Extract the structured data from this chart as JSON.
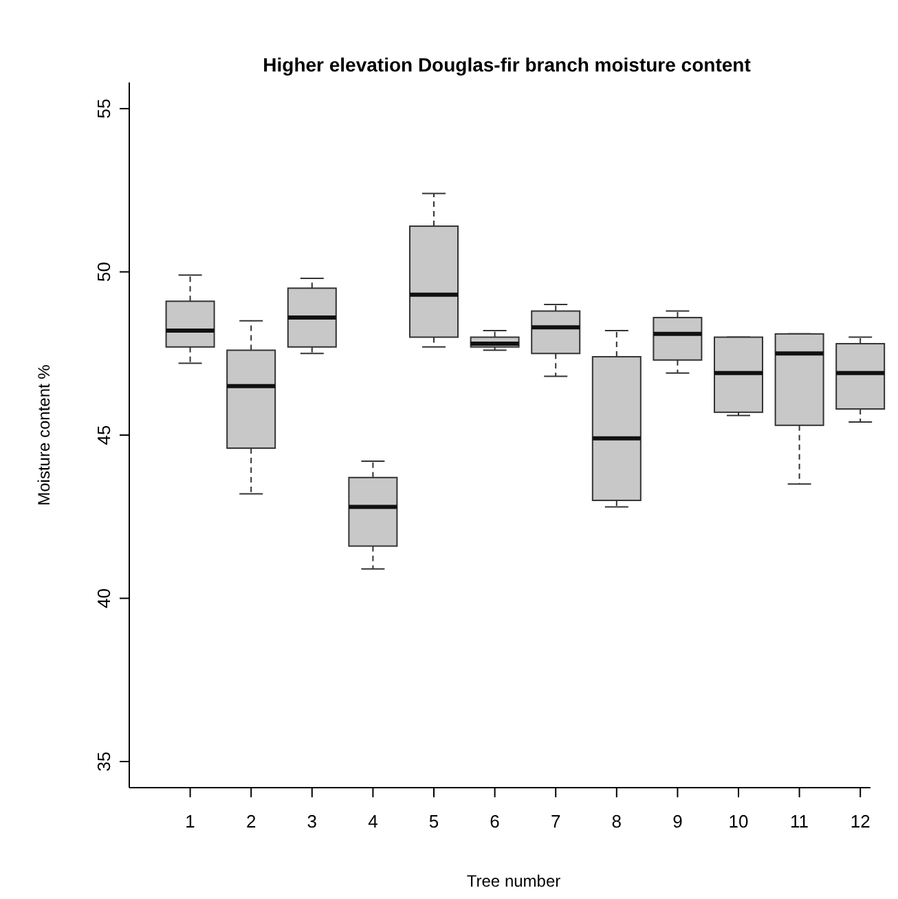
{
  "chart_data": {
    "type": "box",
    "title": "Higher elevation Douglas-fir branch moisture content",
    "xlabel": "Tree number",
    "ylabel": "Moisture content %",
    "categories": [
      "1",
      "2",
      "3",
      "4",
      "5",
      "6",
      "7",
      "8",
      "9",
      "10",
      "11",
      "12"
    ],
    "ylim": [
      34.2,
      55.8
    ],
    "yticks": [
      35,
      40,
      45,
      50,
      55
    ],
    "grid": false,
    "line_style": "dashed",
    "series": [
      {
        "color": "#c8c8c8",
        "boxes": [
          {
            "low": 47.2,
            "q1": 47.7,
            "median": 48.2,
            "q3": 49.1,
            "high": 49.9
          },
          {
            "low": 43.2,
            "q1": 44.6,
            "median": 46.5,
            "q3": 47.6,
            "high": 48.5
          },
          {
            "low": 47.5,
            "q1": 47.7,
            "median": 48.6,
            "q3": 49.5,
            "high": 49.8
          },
          {
            "low": 40.9,
            "q1": 41.6,
            "median": 42.8,
            "q3": 43.7,
            "high": 44.2
          },
          {
            "low": 47.7,
            "q1": 48.0,
            "median": 49.3,
            "q3": 51.4,
            "high": 52.4
          },
          {
            "low": 47.6,
            "q1": 47.7,
            "median": 47.8,
            "q3": 48.0,
            "high": 48.2
          },
          {
            "low": 46.8,
            "q1": 47.5,
            "median": 48.3,
            "q3": 48.8,
            "high": 49.0
          },
          {
            "low": 42.8,
            "q1": 43.0,
            "median": 44.9,
            "q3": 47.4,
            "high": 48.2
          },
          {
            "low": 46.9,
            "q1": 47.3,
            "median": 48.1,
            "q3": 48.6,
            "high": 48.8
          },
          {
            "low": 45.6,
            "q1": 45.7,
            "median": 46.9,
            "q3": 48.0,
            "high": 48.0
          },
          {
            "low": 43.5,
            "q1": 45.3,
            "median": 47.5,
            "q3": 48.1,
            "high": 48.1
          },
          {
            "low": 45.4,
            "q1": 45.8,
            "median": 46.9,
            "q3": 47.8,
            "high": 48.0
          }
        ]
      }
    ]
  }
}
